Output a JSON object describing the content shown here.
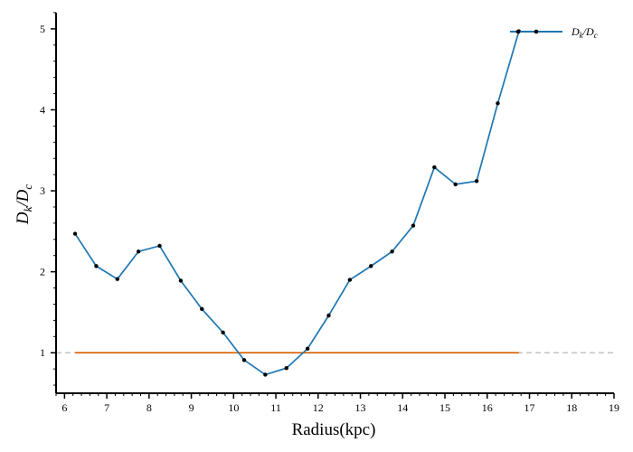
{
  "chart_data": {
    "type": "line",
    "xlabel": "Radius(kpc)",
    "ylabel": "D_k/D_c",
    "ylabel_parts": {
      "main": "D",
      "sub1": "k",
      "slash": "/",
      "main2": "D",
      "sub2": "c"
    },
    "xlim": [
      5.8,
      19.0
    ],
    "ylim": [
      0.5,
      5.2
    ],
    "x_ticks": [
      6,
      7,
      8,
      9,
      10,
      11,
      12,
      13,
      14,
      15,
      16,
      17,
      18,
      19
    ],
    "x_tick_labels": [
      "6",
      "7",
      "8",
      "9",
      "10",
      "11",
      "12",
      "13",
      "14",
      "15",
      "16",
      "17",
      "18",
      "19"
    ],
    "y_ticks": [
      1,
      2,
      3,
      4,
      5
    ],
    "y_tick_labels": [
      "1",
      "2",
      "3",
      "4",
      "5"
    ],
    "legend": {
      "placement": "top-right",
      "label_parts": {
        "main": "D",
        "sub1": "k",
        "slash": "/",
        "main2": "D",
        "sub2": "c"
      }
    },
    "grid": false,
    "series": [
      {
        "color": "#1f77b4",
        "marker_color": "#000000",
        "x": [
          6.25,
          6.75,
          7.25,
          7.75,
          8.25,
          8.75,
          9.25,
          9.75,
          10.25,
          10.75,
          11.25,
          11.75,
          12.25,
          12.75,
          13.25,
          13.75,
          14.25,
          14.75,
          15.25,
          15.75,
          16.25,
          16.75
        ],
        "y": [
          2.47,
          2.07,
          1.91,
          2.25,
          2.32,
          1.89,
          1.54,
          1.25,
          0.91,
          0.73,
          0.81,
          1.05,
          1.46,
          1.9,
          2.07,
          2.25,
          2.57,
          3.29,
          3.08,
          3.12,
          4.08,
          4.97
        ]
      }
    ],
    "reference_lines": [
      {
        "y": 1.0,
        "x_range": [
          5.8,
          19.0
        ],
        "color": "#c8c8c8",
        "style": "dashed"
      },
      {
        "y": 1.0,
        "x_range": [
          6.25,
          16.75
        ],
        "color": "#d95f02",
        "style": "solid"
      }
    ]
  }
}
